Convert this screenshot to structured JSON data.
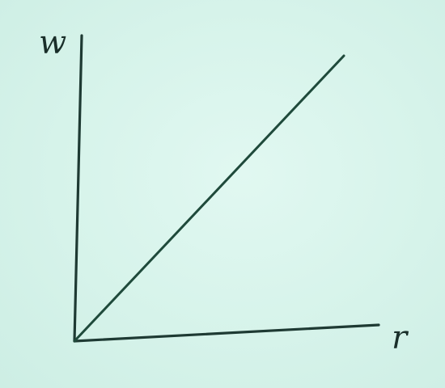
{
  "chart_data": {
    "type": "line",
    "title": "",
    "xlabel": "r",
    "ylabel": "w",
    "grid": false,
    "legend": "none",
    "series": [
      {
        "x": [
          0,
          1
        ],
        "y": [
          0,
          1
        ]
      }
    ],
    "colors": {
      "line": "#1f4a3b",
      "axes": "#1e3a33",
      "background": "#d8f4ec"
    }
  }
}
